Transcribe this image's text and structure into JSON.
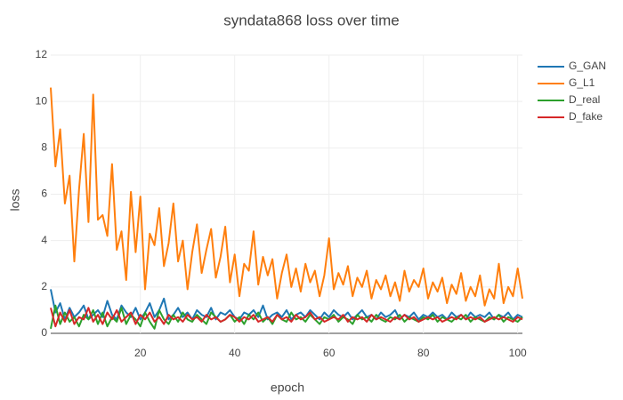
{
  "chart_data": {
    "type": "line",
    "title": "syndata868 loss over time",
    "x_label": "epoch",
    "y_label": "loss",
    "x": [
      1,
      2,
      3,
      4,
      5,
      6,
      7,
      8,
      9,
      10,
      11,
      12,
      13,
      14,
      15,
      16,
      17,
      18,
      19,
      20,
      21,
      22,
      23,
      24,
      25,
      26,
      27,
      28,
      29,
      30,
      31,
      32,
      33,
      34,
      35,
      36,
      37,
      38,
      39,
      40,
      41,
      42,
      43,
      44,
      45,
      46,
      47,
      48,
      49,
      50,
      51,
      52,
      53,
      54,
      55,
      56,
      57,
      58,
      59,
      60,
      61,
      62,
      63,
      64,
      65,
      66,
      67,
      68,
      69,
      70,
      71,
      72,
      73,
      74,
      75,
      76,
      77,
      78,
      79,
      80,
      81,
      82,
      83,
      84,
      85,
      86,
      87,
      88,
      89,
      90,
      91,
      92,
      93,
      94,
      95,
      96,
      97,
      98,
      99,
      100,
      101
    ],
    "series": [
      {
        "name": "G_GAN",
        "color": "#1f77b4",
        "values": [
          1.9,
          0.9,
          1.3,
          0.6,
          1.1,
          0.7,
          0.9,
          1.2,
          0.6,
          0.8,
          1.0,
          0.7,
          1.4,
          0.8,
          0.6,
          1.2,
          0.9,
          0.7,
          1.1,
          0.6,
          0.9,
          1.3,
          0.7,
          1.0,
          1.5,
          0.6,
          0.8,
          1.1,
          0.7,
          0.9,
          0.6,
          1.0,
          0.8,
          0.7,
          1.1,
          0.6,
          0.9,
          0.8,
          1.0,
          0.7,
          0.6,
          0.9,
          0.8,
          1.0,
          0.7,
          1.2,
          0.6,
          0.8,
          0.9,
          0.7,
          1.0,
          0.6,
          0.8,
          0.9,
          0.7,
          1.0,
          0.8,
          0.6,
          0.9,
          0.7,
          1.0,
          0.8,
          0.7,
          0.9,
          0.6,
          0.8,
          1.0,
          0.7,
          0.8,
          0.6,
          0.9,
          0.7,
          0.8,
          1.0,
          0.6,
          0.8,
          0.7,
          0.9,
          0.6,
          0.8,
          0.7,
          0.9,
          0.7,
          0.8,
          0.6,
          0.9,
          0.7,
          0.8,
          0.6,
          0.9,
          0.7,
          0.8,
          0.7,
          0.9,
          0.6,
          0.8,
          0.7,
          0.9,
          0.6,
          0.8,
          0.7
        ]
      },
      {
        "name": "G_L1",
        "color": "#ff7f0e",
        "values": [
          10.6,
          7.2,
          8.8,
          5.6,
          6.8,
          3.1,
          6.2,
          8.6,
          4.8,
          10.3,
          4.9,
          5.1,
          4.2,
          7.3,
          3.6,
          4.4,
          2.3,
          6.1,
          3.5,
          5.9,
          1.9,
          4.3,
          3.8,
          5.4,
          2.9,
          3.9,
          5.6,
          3.1,
          4.0,
          1.9,
          3.5,
          4.7,
          2.6,
          3.6,
          4.5,
          2.4,
          3.3,
          4.6,
          2.2,
          3.4,
          1.6,
          3.0,
          2.7,
          4.4,
          2.1,
          3.3,
          2.5,
          3.2,
          1.5,
          2.6,
          3.4,
          2.0,
          2.8,
          1.8,
          3.0,
          2.2,
          2.7,
          1.6,
          2.5,
          4.1,
          1.9,
          2.6,
          2.1,
          2.9,
          1.6,
          2.4,
          2.0,
          2.7,
          1.5,
          2.3,
          1.9,
          2.5,
          1.6,
          2.2,
          1.4,
          2.7,
          1.8,
          2.3,
          2.0,
          2.8,
          1.5,
          2.2,
          1.8,
          2.4,
          1.3,
          2.1,
          1.7,
          2.6,
          1.4,
          2.0,
          1.6,
          2.5,
          1.2,
          1.9,
          1.5,
          3.0,
          1.3,
          2.0,
          1.6,
          2.8,
          1.5
        ]
      },
      {
        "name": "D_real",
        "color": "#2ca02c",
        "values": [
          0.2,
          1.2,
          0.4,
          0.9,
          0.5,
          0.7,
          0.3,
          0.8,
          0.6,
          1.0,
          0.4,
          0.9,
          0.3,
          0.7,
          0.5,
          1.1,
          0.4,
          0.8,
          0.6,
          0.3,
          0.9,
          0.5,
          0.2,
          1.0,
          0.6,
          0.4,
          0.8,
          0.5,
          0.9,
          0.6,
          0.5,
          0.8,
          0.6,
          0.4,
          0.9,
          0.7,
          0.5,
          0.6,
          0.8,
          0.5,
          0.7,
          0.4,
          0.8,
          0.6,
          0.9,
          0.5,
          0.7,
          0.4,
          0.8,
          0.6,
          0.5,
          0.9,
          0.6,
          0.7,
          0.5,
          0.8,
          0.6,
          0.4,
          0.7,
          0.6,
          0.8,
          0.5,
          0.7,
          0.6,
          0.4,
          0.8,
          0.6,
          0.7,
          0.5,
          0.8,
          0.6,
          0.5,
          0.7,
          0.6,
          0.8,
          0.5,
          0.7,
          0.6,
          0.5,
          0.7,
          0.6,
          0.8,
          0.5,
          0.7,
          0.6,
          0.5,
          0.7,
          0.6,
          0.8,
          0.5,
          0.7,
          0.6,
          0.5,
          0.7,
          0.6,
          0.8,
          0.5,
          0.7,
          0.6,
          0.5,
          0.7
        ]
      },
      {
        "name": "D_fake",
        "color": "#d62728",
        "values": [
          1.1,
          0.3,
          0.9,
          0.5,
          1.0,
          0.4,
          0.7,
          0.6,
          1.1,
          0.5,
          0.8,
          0.4,
          0.9,
          0.6,
          1.0,
          0.5,
          0.7,
          0.9,
          0.4,
          0.8,
          0.6,
          0.9,
          0.5,
          0.7,
          0.4,
          0.8,
          0.6,
          0.7,
          0.5,
          0.8,
          0.6,
          0.7,
          0.5,
          0.8,
          0.6,
          0.7,
          0.5,
          0.6,
          0.8,
          0.7,
          0.5,
          0.7,
          0.6,
          0.8,
          0.5,
          0.6,
          0.7,
          0.5,
          0.8,
          0.6,
          0.7,
          0.5,
          0.8,
          0.6,
          0.7,
          0.9,
          0.6,
          0.7,
          0.5,
          0.6,
          0.7,
          0.6,
          0.8,
          0.5,
          0.7,
          0.6,
          0.7,
          0.5,
          0.8,
          0.6,
          0.7,
          0.6,
          0.5,
          0.7,
          0.6,
          0.8,
          0.6,
          0.7,
          0.5,
          0.6,
          0.7,
          0.6,
          0.7,
          0.5,
          0.6,
          0.7,
          0.6,
          0.8,
          0.6,
          0.7,
          0.6,
          0.7,
          0.5,
          0.6,
          0.7,
          0.6,
          0.7,
          0.6,
          0.5,
          0.7,
          0.6
        ]
      }
    ],
    "xlim": [
      1,
      101
    ],
    "ylim": [
      0,
      12
    ],
    "xticks": [
      20,
      40,
      60,
      80,
      100
    ],
    "yticks": [
      0,
      2,
      4,
      6,
      8,
      10,
      12
    ],
    "grid": true,
    "legend": "right"
  }
}
